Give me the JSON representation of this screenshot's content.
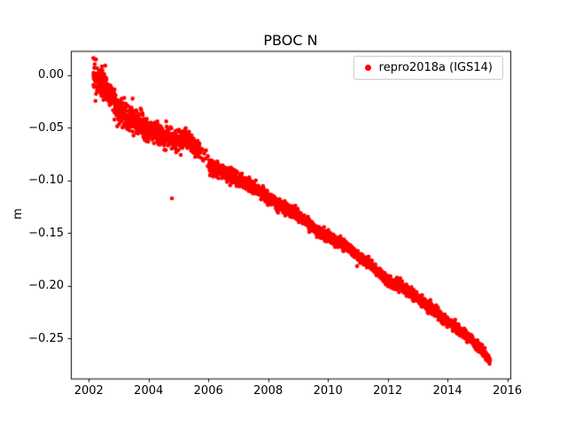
{
  "chart_data": {
    "type": "scatter",
    "title": "PBOC N",
    "xlabel": "",
    "ylabel": "m",
    "grid": false,
    "legend_position": "upper right",
    "xlim": [
      2001.4,
      2016.1
    ],
    "ylim": [
      -0.288,
      0.023
    ],
    "x_ticks": [
      2002,
      2004,
      2006,
      2008,
      2010,
      2012,
      2014,
      2016
    ],
    "y_ticks": [
      0.0,
      -0.05,
      -0.1,
      -0.15,
      -0.2,
      -0.25
    ],
    "series": [
      {
        "name": "repro2018a (IGS14)",
        "color": "#ff0000",
        "marker": "dot",
        "marker_radius_px": 2.3,
        "x_start": 2002.15,
        "x_end": 2015.42,
        "points_per_year": 260,
        "seed": 7,
        "trend_anchors": [
          [
            2002.15,
            0.0
          ],
          [
            2002.4,
            -0.008
          ],
          [
            2002.7,
            -0.016
          ],
          [
            2003.0,
            -0.033
          ],
          [
            2003.3,
            -0.04
          ],
          [
            2003.6,
            -0.044
          ],
          [
            2004.0,
            -0.052
          ],
          [
            2004.4,
            -0.057
          ],
          [
            2004.8,
            -0.06
          ],
          [
            2005.0,
            -0.063
          ],
          [
            2005.3,
            -0.06
          ],
          [
            2005.6,
            -0.07
          ],
          [
            2005.9,
            -0.077
          ],
          [
            2006.1,
            -0.088
          ],
          [
            2006.4,
            -0.09
          ],
          [
            2006.7,
            -0.094
          ],
          [
            2007.0,
            -0.1
          ],
          [
            2007.4,
            -0.104
          ],
          [
            2007.8,
            -0.112
          ],
          [
            2008.0,
            -0.116
          ],
          [
            2008.4,
            -0.124
          ],
          [
            2008.8,
            -0.13
          ],
          [
            2009.2,
            -0.137
          ],
          [
            2009.6,
            -0.147
          ],
          [
            2010.0,
            -0.154
          ],
          [
            2010.3,
            -0.157
          ],
          [
            2010.7,
            -0.164
          ],
          [
            2011.0,
            -0.172
          ],
          [
            2011.4,
            -0.18
          ],
          [
            2011.8,
            -0.19
          ],
          [
            2012.1,
            -0.197
          ],
          [
            2012.4,
            -0.199
          ],
          [
            2012.8,
            -0.208
          ],
          [
            2013.2,
            -0.216
          ],
          [
            2013.6,
            -0.224
          ],
          [
            2014.0,
            -0.234
          ],
          [
            2014.4,
            -0.242
          ],
          [
            2014.8,
            -0.251
          ],
          [
            2015.1,
            -0.259
          ],
          [
            2015.42,
            -0.271
          ]
        ],
        "noise_sd_anchors": [
          [
            2002.15,
            0.007
          ],
          [
            2003.0,
            0.0062
          ],
          [
            2004.0,
            0.005
          ],
          [
            2005.0,
            0.0045
          ],
          [
            2006.0,
            0.0035
          ],
          [
            2007.0,
            0.003
          ],
          [
            2008.0,
            0.0027
          ],
          [
            2010.0,
            0.0025
          ],
          [
            2015.42,
            0.0022
          ]
        ],
        "sparse_regions": [
          [
            2005.7,
            2006.03,
            0.15
          ]
        ],
        "outliers": [
          [
            2004.78,
            -0.117
          ],
          [
            2002.55,
            0.009
          ],
          [
            2006.06,
            -0.095
          ]
        ]
      }
    ]
  }
}
